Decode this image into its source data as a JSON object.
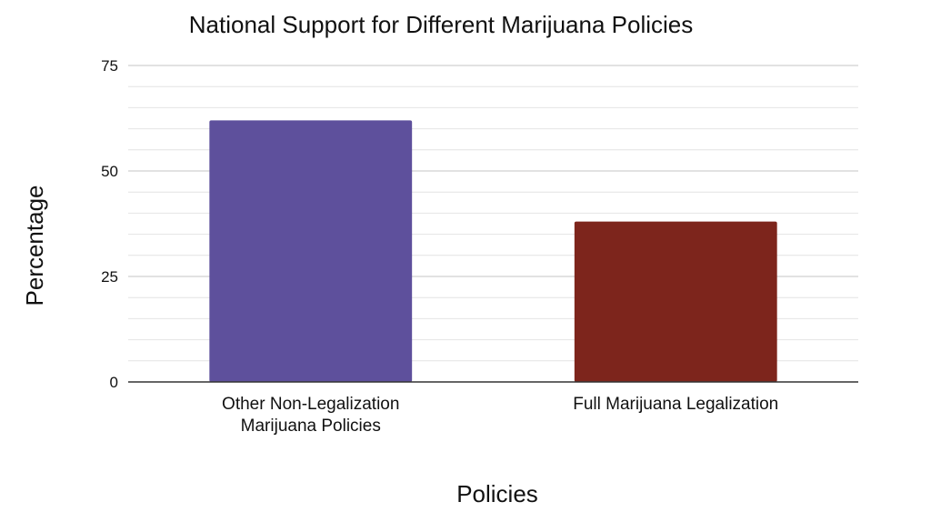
{
  "chart_data": {
    "type": "bar",
    "title": "National Support for Different Marijuana Policies",
    "xlabel": "Policies",
    "ylabel": "Percentage",
    "categories": [
      [
        "Other Non-Legalization",
        "Marijuana Policies"
      ],
      [
        "Full Marijuana Legalization"
      ]
    ],
    "values": [
      62,
      38
    ],
    "bar_colors": [
      "#5e509c",
      "#7d251c"
    ],
    "ylim": [
      0,
      75
    ],
    "yticks": [
      0,
      25,
      50,
      75
    ],
    "minor_grid_step": 5,
    "grid": true,
    "legend": "none"
  }
}
